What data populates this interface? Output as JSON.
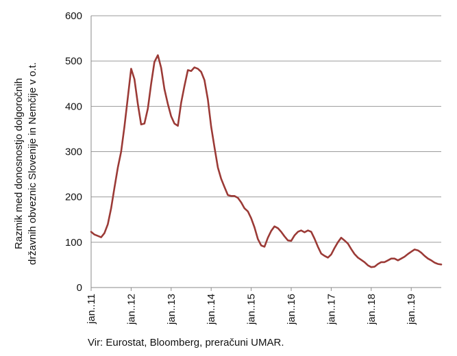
{
  "chart_data": {
    "type": "line",
    "ylabel_line1": "Razmik med donosnostjo dolgoročnih",
    "ylabel_line2": "državnih obveznic Slovenije in Nemčije v o.t.",
    "ylim": [
      0,
      600
    ],
    "yticks": [
      0,
      100,
      200,
      300,
      400,
      500,
      600
    ],
    "xlim": [
      2011,
      2019.75
    ],
    "xticks": [
      {
        "x": 2011,
        "label": "jan..11"
      },
      {
        "x": 2012,
        "label": "jan..12"
      },
      {
        "x": 2013,
        "label": "jan..13"
      },
      {
        "x": 2014,
        "label": "jan..14"
      },
      {
        "x": 2015,
        "label": "jan..15"
      },
      {
        "x": 2016,
        "label": "jan..16"
      },
      {
        "x": 2017,
        "label": "jan..17"
      },
      {
        "x": 2018,
        "label": "jan..18"
      },
      {
        "x": 2019,
        "label": "jan..19"
      }
    ],
    "grid": "horizontal",
    "series": [
      {
        "color": "#9b3a36",
        "points": [
          [
            2011.0,
            123
          ],
          [
            2011.083,
            117
          ],
          [
            2011.167,
            114
          ],
          [
            2011.25,
            111
          ],
          [
            2011.333,
            120
          ],
          [
            2011.417,
            140
          ],
          [
            2011.5,
            175
          ],
          [
            2011.583,
            220
          ],
          [
            2011.667,
            265
          ],
          [
            2011.75,
            300
          ],
          [
            2011.833,
            355
          ],
          [
            2011.917,
            420
          ],
          [
            2012.0,
            483
          ],
          [
            2012.083,
            460
          ],
          [
            2012.167,
            405
          ],
          [
            2012.25,
            360
          ],
          [
            2012.333,
            362
          ],
          [
            2012.417,
            395
          ],
          [
            2012.5,
            450
          ],
          [
            2012.583,
            498
          ],
          [
            2012.667,
            513
          ],
          [
            2012.75,
            485
          ],
          [
            2012.833,
            438
          ],
          [
            2012.917,
            405
          ],
          [
            2013.0,
            378
          ],
          [
            2013.083,
            362
          ],
          [
            2013.167,
            357
          ],
          [
            2013.25,
            408
          ],
          [
            2013.333,
            445
          ],
          [
            2013.417,
            480
          ],
          [
            2013.5,
            478
          ],
          [
            2013.583,
            486
          ],
          [
            2013.667,
            483
          ],
          [
            2013.75,
            476
          ],
          [
            2013.833,
            458
          ],
          [
            2013.917,
            415
          ],
          [
            2014.0,
            355
          ],
          [
            2014.083,
            310
          ],
          [
            2014.167,
            265
          ],
          [
            2014.25,
            240
          ],
          [
            2014.333,
            222
          ],
          [
            2014.417,
            204
          ],
          [
            2014.5,
            202
          ],
          [
            2014.583,
            202
          ],
          [
            2014.667,
            198
          ],
          [
            2014.75,
            188
          ],
          [
            2014.833,
            175
          ],
          [
            2014.917,
            168
          ],
          [
            2015.0,
            153
          ],
          [
            2015.083,
            133
          ],
          [
            2015.167,
            107
          ],
          [
            2015.25,
            93
          ],
          [
            2015.333,
            90
          ],
          [
            2015.417,
            110
          ],
          [
            2015.5,
            125
          ],
          [
            2015.583,
            135
          ],
          [
            2015.667,
            131
          ],
          [
            2015.75,
            123
          ],
          [
            2015.833,
            113
          ],
          [
            2015.917,
            104
          ],
          [
            2016.0,
            103
          ],
          [
            2016.083,
            115
          ],
          [
            2016.167,
            123
          ],
          [
            2016.25,
            126
          ],
          [
            2016.333,
            122
          ],
          [
            2016.417,
            126
          ],
          [
            2016.5,
            123
          ],
          [
            2016.583,
            108
          ],
          [
            2016.667,
            90
          ],
          [
            2016.75,
            75
          ],
          [
            2016.833,
            70
          ],
          [
            2016.917,
            66
          ],
          [
            2017.0,
            73
          ],
          [
            2017.083,
            87
          ],
          [
            2017.167,
            100
          ],
          [
            2017.25,
            110
          ],
          [
            2017.333,
            104
          ],
          [
            2017.417,
            97
          ],
          [
            2017.5,
            85
          ],
          [
            2017.583,
            74
          ],
          [
            2017.667,
            66
          ],
          [
            2017.75,
            61
          ],
          [
            2017.833,
            56
          ],
          [
            2017.917,
            49
          ],
          [
            2018.0,
            45
          ],
          [
            2018.083,
            46
          ],
          [
            2018.167,
            52
          ],
          [
            2018.25,
            56
          ],
          [
            2018.333,
            56
          ],
          [
            2018.417,
            60
          ],
          [
            2018.5,
            64
          ],
          [
            2018.583,
            64
          ],
          [
            2018.667,
            60
          ],
          [
            2018.75,
            64
          ],
          [
            2018.833,
            68
          ],
          [
            2018.917,
            74
          ],
          [
            2019.0,
            79
          ],
          [
            2019.083,
            84
          ],
          [
            2019.167,
            82
          ],
          [
            2019.25,
            77
          ],
          [
            2019.333,
            70
          ],
          [
            2019.417,
            64
          ],
          [
            2019.5,
            60
          ],
          [
            2019.583,
            55
          ],
          [
            2019.667,
            52
          ],
          [
            2019.75,
            51
          ]
        ]
      }
    ]
  },
  "source": "Vir: Eurostat, Bloomberg, preračuni UMAR."
}
